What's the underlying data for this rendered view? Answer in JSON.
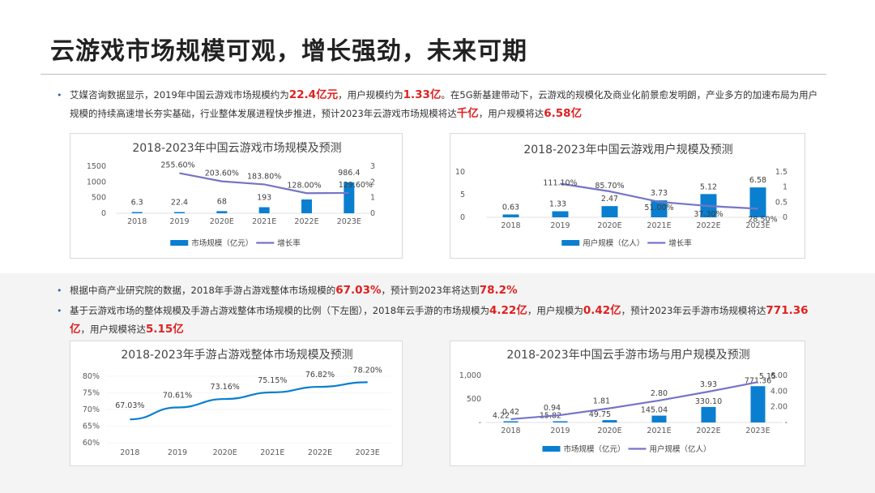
{
  "page": {
    "title": "云游戏市场规模可观，增长强劲，未来可期"
  },
  "para1": {
    "t1": "艾媒咨询数据显示，2019年中国云游戏市场规模约为",
    "h1": "22.4亿元",
    "t2": "，用户规模约为",
    "h2": "1.33亿",
    "t3": "。在5G新基建带动下，云游戏的规模化及商业化前景愈发明朗，产业多方的加速布局为用户规模的持续高速增长夯实基础，行业整体发展进程快步推进，预计2023年云游戏市场规模将达",
    "h3": "千亿",
    "t4": "，用户规模将达",
    "h4": "6.58亿"
  },
  "para2": {
    "t1": "根据中商产业研究院的数据，2018年手游占游戏整体市场规模的",
    "h1": "67.03%",
    "t2": "，预计到2023年将达到",
    "h2": "78.2%"
  },
  "para3": {
    "t1": "基于云游戏市场的整体规模及手游占游戏整体市场规模的比例（下左图），2018年云手游的市场规模为",
    "h1": "4.22亿",
    "t2": "，用户规模为",
    "h2": "0.42亿",
    "t3": "，预计2023年云手游市场规模将达",
    "h3": "771.36亿",
    "t4": "，用户规模将达",
    "h4": "5.15亿"
  },
  "colors": {
    "bar": "#0a7fd0",
    "line": "#7774c6",
    "line_blue": "#0a7fd0",
    "highlight": "#e02020"
  },
  "chart_data": [
    {
      "id": "market",
      "type": "bar",
      "title": "2018-2023年中国云游戏市场规模及预测",
      "categories": [
        "2018",
        "2019",
        "2020E",
        "2021E",
        "2022E",
        "2023E"
      ],
      "series": [
        {
          "name": "市场规模（亿元）",
          "type": "bar",
          "axis": "left",
          "values": [
            6.3,
            22.4,
            68,
            193,
            440,
            986.4
          ],
          "labels": [
            "6.3",
            "22.4",
            "68",
            "193",
            "",
            "986.4"
          ]
        },
        {
          "name": "增长率",
          "type": "line",
          "axis": "right",
          "values": [
            null,
            2.556,
            2.036,
            1.838,
            1.28,
            1.296
          ],
          "labels": [
            "",
            "255.60%",
            "203.60%",
            "183.80%",
            "128.00%",
            "129.60%"
          ]
        }
      ],
      "yticks_left": [
        "1500",
        "1000",
        "500",
        "0"
      ],
      "ylim_left": [
        0,
        1500
      ],
      "yticks_right": [
        "3",
        "2",
        "1",
        "0"
      ],
      "ylim_right": [
        0,
        3
      ],
      "legend": "bottom"
    },
    {
      "id": "users",
      "type": "bar",
      "title": "2018-2023年中国云游戏用户规模及预测",
      "categories": [
        "2018",
        "2019",
        "2020E",
        "2021E",
        "2022E",
        "2023E"
      ],
      "series": [
        {
          "name": "用户规模（亿人）",
          "type": "bar",
          "axis": "left",
          "values": [
            0.63,
            1.33,
            2.47,
            3.73,
            5.12,
            6.58
          ],
          "labels": [
            "0.63",
            "1.33",
            "2.47",
            "3.73",
            "5.12",
            "6.58"
          ]
        },
        {
          "name": "增长率",
          "type": "line",
          "axis": "right",
          "values": [
            null,
            1.111,
            0.857,
            0.51,
            0.373,
            0.285
          ],
          "labels": [
            "",
            "111.10%",
            "85.70%",
            "51.00%",
            "37.30%",
            "28.50%"
          ]
        }
      ],
      "yticks_left": [
        "10",
        "5",
        "0"
      ],
      "ylim_left": [
        0,
        10
      ],
      "yticks_right": [
        "1.5",
        "1",
        "0.5",
        "0"
      ],
      "ylim_right": [
        0,
        1.5
      ],
      "legend": "bottom"
    },
    {
      "id": "share",
      "type": "line",
      "title": "2018-2023年手游占游戏整体市场规模及预测",
      "categories": [
        "2018",
        "2019",
        "2020E",
        "2021E",
        "2022E",
        "2023E"
      ],
      "series": [
        {
          "name": "",
          "type": "line",
          "axis": "left",
          "values": [
            67.03,
            70.61,
            73.16,
            75.15,
            76.82,
            78.2
          ],
          "labels": [
            "67.03%",
            "70.61%",
            "73.16%",
            "75.15%",
            "76.82%",
            "78.20%"
          ]
        }
      ],
      "yticks_left": [
        "80%",
        "75%",
        "70%",
        "65%",
        "60%"
      ],
      "ylim_left": [
        60,
        80
      ],
      "legend": "none"
    },
    {
      "id": "mobile",
      "type": "bar",
      "title": "2018-2023年中国云手游市场与用户规模及预测",
      "categories": [
        "2018",
        "2019",
        "2020E",
        "2021E",
        "2022E",
        "2023E"
      ],
      "series": [
        {
          "name": "市场规模（亿元）",
          "type": "bar",
          "axis": "left",
          "values": [
            4.22,
            15.82,
            49.75,
            145.04,
            330.1,
            771.36
          ],
          "labels": [
            "4.22",
            "15.82",
            "49.75",
            "145.04",
            "330.10",
            "771.36"
          ]
        },
        {
          "name": "用户规模（亿人）",
          "type": "line",
          "axis": "right",
          "values": [
            0.42,
            0.94,
            1.81,
            2.8,
            3.93,
            5.15
          ],
          "labels": [
            "0.42",
            "0.94",
            "1.81",
            "2.80",
            "3.93",
            "5.15"
          ]
        }
      ],
      "yticks_left": [
        "1,000",
        "500",
        "-"
      ],
      "ylim_left": [
        0,
        1000
      ],
      "yticks_right": [
        "6.00",
        "4.00",
        "2.00",
        "-"
      ],
      "ylim_right": [
        0,
        6
      ],
      "legend": "bottom"
    }
  ]
}
